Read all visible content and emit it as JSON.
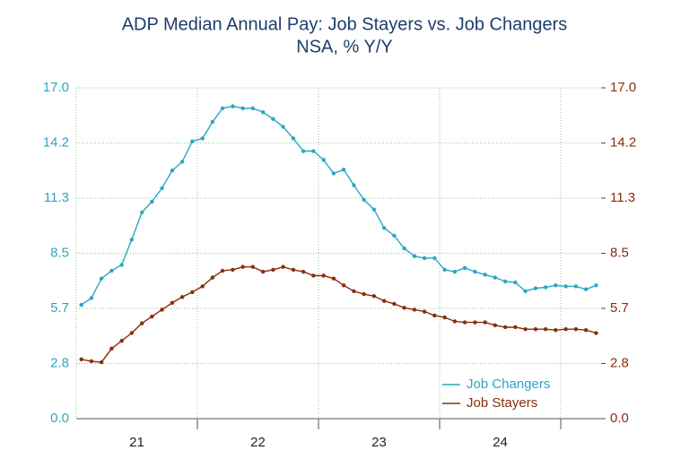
{
  "chart_data": {
    "type": "line",
    "title": "ADP Median Annual Pay: Job Stayers vs. Job Changers",
    "subtitle": "NSA, % Y/Y",
    "x": [
      2021.042,
      2021.125,
      2021.208,
      2021.292,
      2021.375,
      2021.458,
      2021.542,
      2021.625,
      2021.708,
      2021.792,
      2021.875,
      2021.958,
      2022.042,
      2022.125,
      2022.208,
      2022.292,
      2022.375,
      2022.458,
      2022.542,
      2022.625,
      2022.708,
      2022.792,
      2022.875,
      2022.958,
      2023.042,
      2023.125,
      2023.208,
      2023.292,
      2023.375,
      2023.458,
      2023.542,
      2023.625,
      2023.708,
      2023.792,
      2023.875,
      2023.958,
      2024.042,
      2024.125,
      2024.208,
      2024.292,
      2024.375,
      2024.458,
      2024.542,
      2024.625,
      2024.708,
      2024.792,
      2024.875,
      2024.958,
      2025.042,
      2025.125,
      2025.208,
      2025.292
    ],
    "series": [
      {
        "name": "Job Changers",
        "color": "#2ba6c2",
        "values": [
          5.85,
          6.2,
          7.2,
          7.6,
          7.9,
          9.2,
          10.6,
          11.15,
          11.85,
          12.75,
          13.2,
          14.25,
          14.4,
          15.25,
          15.95,
          16.05,
          15.95,
          15.95,
          15.75,
          15.4,
          15.0,
          14.4,
          13.75,
          13.75,
          13.3,
          12.6,
          12.8,
          12.0,
          11.25,
          10.75,
          9.8,
          9.4,
          8.75,
          8.35,
          8.25,
          8.25,
          7.65,
          7.55,
          7.75,
          7.55,
          7.4,
          7.25,
          7.05,
          7.0,
          6.55,
          6.7,
          6.75,
          6.85,
          6.8,
          6.8,
          6.65,
          6.85
        ]
      },
      {
        "name": "Job Stayers",
        "color": "#8a2d0c",
        "values": [
          3.05,
          2.95,
          2.9,
          3.6,
          4.0,
          4.4,
          4.9,
          5.25,
          5.6,
          5.95,
          6.25,
          6.5,
          6.8,
          7.25,
          7.6,
          7.65,
          7.8,
          7.8,
          7.55,
          7.65,
          7.8,
          7.65,
          7.55,
          7.35,
          7.35,
          7.2,
          6.85,
          6.55,
          6.4,
          6.3,
          6.05,
          5.9,
          5.7,
          5.6,
          5.5,
          5.3,
          5.2,
          5.0,
          4.95,
          4.95,
          4.95,
          4.8,
          4.7,
          4.7,
          4.6,
          4.6,
          4.6,
          4.55,
          4.6,
          4.6,
          4.55,
          4.4
        ]
      }
    ],
    "xlim": [
      2021,
      2025.333
    ],
    "xticks": [
      2022,
      2023,
      2024,
      2025
    ],
    "x_labels": [
      {
        "value": 2021.5,
        "label": "21"
      },
      {
        "value": 2022.5,
        "label": "22"
      },
      {
        "value": 2023.5,
        "label": "23"
      },
      {
        "value": 2024.5,
        "label": "24"
      }
    ],
    "ylim": [
      0,
      17
    ],
    "yticks": [
      {
        "value": 0,
        "label": "0.0"
      },
      {
        "value": 2.8333,
        "label": "2.8"
      },
      {
        "value": 5.6667,
        "label": "5.7"
      },
      {
        "value": 8.5,
        "label": "8.5"
      },
      {
        "value": 11.3333,
        "label": "11.3"
      },
      {
        "value": 14.1667,
        "label": "14.2"
      },
      {
        "value": 17,
        "label": "17.0"
      }
    ],
    "y2lim": [
      0,
      17
    ],
    "y2ticks": [
      {
        "value": 0,
        "label": "0.0"
      },
      {
        "value": 2.8333,
        "label": "2.8"
      },
      {
        "value": 5.6667,
        "label": "5.7"
      },
      {
        "value": 8.5,
        "label": "8.5"
      },
      {
        "value": 11.3333,
        "label": "11.3"
      },
      {
        "value": 14.1667,
        "label": "14.2"
      },
      {
        "value": 17,
        "label": "17.0"
      }
    ],
    "grid": true,
    "legend": "lower right"
  }
}
